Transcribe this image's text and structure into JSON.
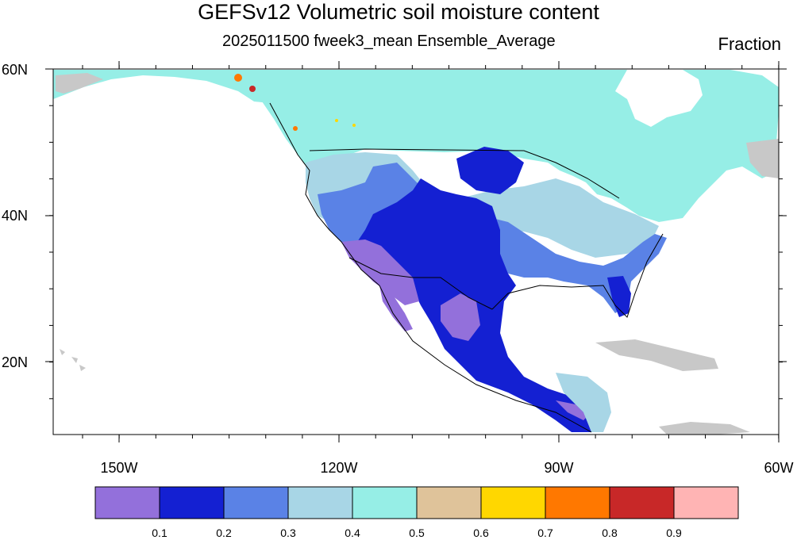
{
  "title": "GEFSv12 Volumetric soil moisture content",
  "subtitle": "2025011500 fweek3_mean Ensemble_Average",
  "units": "Fraction",
  "y_axis_labels": [
    "60N",
    "40N",
    "20N"
  ],
  "x_axis_labels": [
    "150W",
    "120W",
    "90W",
    "60W"
  ],
  "colorbar": {
    "colors": [
      "#9370db",
      "#1420d2",
      "#5a82e6",
      "#a8d6e6",
      "#96eee6",
      "#dfc39a",
      "#ffd700",
      "#ff7800",
      "#c82828",
      "#ffb4b4"
    ],
    "labels": [
      "0.1",
      "0.2",
      "0.3",
      "0.4",
      "0.5",
      "0.6",
      "0.7",
      "0.8",
      "0.9"
    ]
  },
  "map_colors": {
    "ocean": "#ffffff",
    "missing": "#c8c8c8",
    "border": "#000000"
  }
}
